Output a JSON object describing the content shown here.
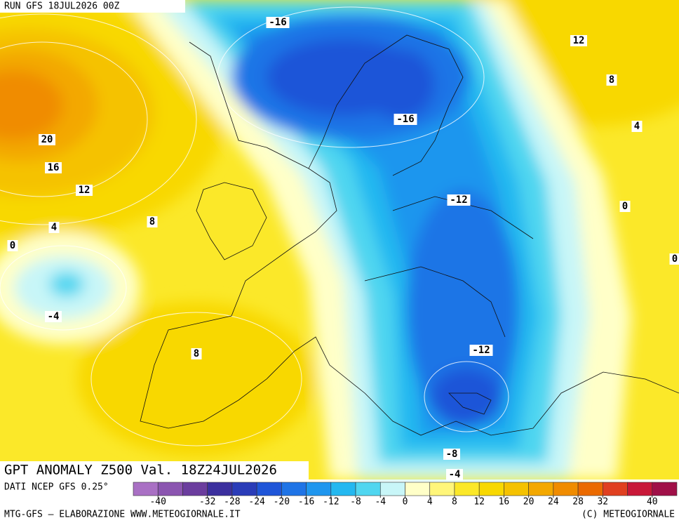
{
  "header": {
    "run": "RUN GFS 18JUL2026 00Z"
  },
  "map": {
    "contour_labels": [
      "-16",
      "12",
      "8",
      "-16",
      "4",
      "20",
      "16",
      "12",
      "-12",
      "0",
      "4",
      "8",
      "0",
      "0",
      "-4",
      "-12",
      "8",
      "-8",
      "-4"
    ]
  },
  "title": "GPT ANOMALY Z500 Val. 18Z24JUL2026",
  "colorbar": {
    "label": "DATI NCEP GFS 0.25°",
    "lim": [
      -44,
      44
    ],
    "colors": [
      "#a970c4",
      "#8b55b0",
      "#6b3d9e",
      "#3b2f9e",
      "#2a3cb8",
      "#1f55d8",
      "#1f74e6",
      "#1f96ee",
      "#24b8f0",
      "#50d6f0",
      "#c8f6f8",
      "#ffffc8",
      "#fff67a",
      "#fbe829",
      "#f8d800",
      "#f5c200",
      "#f3a800",
      "#f08c00",
      "#eb6a00",
      "#e04020",
      "#c81838",
      "#a01048"
    ],
    "ticks": [
      -40,
      -32,
      -28,
      -24,
      -20,
      -16,
      -12,
      -8,
      -4,
      0,
      4,
      8,
      12,
      16,
      20,
      24,
      28,
      32,
      40
    ]
  },
  "footer": {
    "left": "MTG-GFS – ELABORAZIONE WWW.METEOGIORNALE.IT",
    "right": "(C) METEOGIORNALE"
  }
}
